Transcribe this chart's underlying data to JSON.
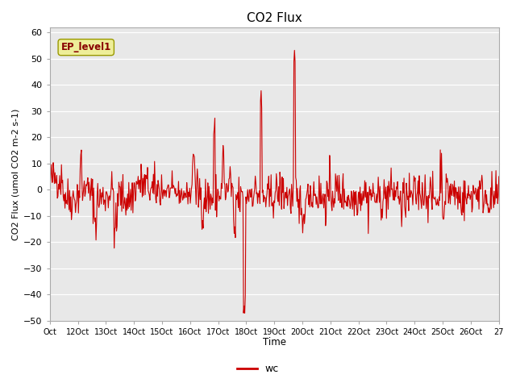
{
  "title": "CO2 Flux",
  "ylabel": "CO2 Flux (umol CO2 m-2 s-1)",
  "xlabel": "Time",
  "ylim": [
    -50,
    62
  ],
  "yticks": [
    -50,
    -40,
    -30,
    -20,
    -10,
    0,
    10,
    20,
    30,
    40,
    50,
    60
  ],
  "line_color": "#cc0000",
  "line_width": 0.8,
  "plot_bg_color": "#e8e8e8",
  "legend_label": "wc",
  "annotation_text": "EP_level1",
  "annotation_bg": "#eeee99",
  "annotation_edge": "#999900",
  "annotation_text_color": "#880000",
  "x_tick_positions": [
    11,
    12,
    13,
    14,
    15,
    16,
    17,
    18,
    19,
    20,
    21,
    22,
    23,
    24,
    25,
    26,
    27
  ],
  "x_tick_labels": [
    "Oct",
    "12Oct",
    "13Oct",
    "14Oct",
    "15Oct",
    "16Oct",
    "17Oct",
    "18Oct",
    "19Oct",
    "20Oct",
    "21Oct",
    "22Oct",
    "23Oct",
    "24Oct",
    "25Oct",
    "26Oct",
    "27"
  ],
  "figsize": [
    6.4,
    4.8
  ],
  "dpi": 100
}
